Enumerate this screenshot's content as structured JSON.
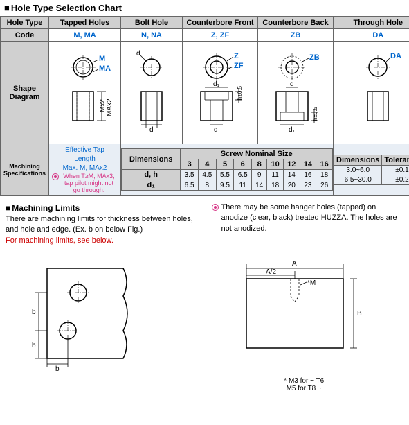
{
  "chart_title": "Hole Type Selection Chart",
  "header": {
    "hole_type": "Hole Type",
    "code": "Code",
    "shape": "Shape\nDiagram",
    "spec": "Machining\nSpecifications"
  },
  "cols": {
    "tapped": {
      "name": "Tapped Holes",
      "code": "M, MA"
    },
    "bolt": {
      "name": "Bolt Hole",
      "code": "N, NA"
    },
    "cb_front": {
      "name": "Counterbore Front",
      "code": "Z, ZF"
    },
    "cb_back": {
      "name": "Counterbore Back",
      "code": "ZB"
    },
    "through": {
      "name": "Through Hole",
      "code": "DA"
    }
  },
  "labels": {
    "M": "M",
    "MA": "MA",
    "d": "d",
    "Z": "Z",
    "ZF": "ZF",
    "ZB": "ZB",
    "DA": "DA",
    "d1": "d₁",
    "h": "h±0.5",
    "Mx2": "Mx2",
    "MAx2": "MAx2"
  },
  "eff_tap": {
    "l1": "Effective Tap",
    "l2": "Length",
    "l3": "Max. M, MAx2",
    "note": "When T≥M, MAx3, tap pilot might not go through."
  },
  "screw_table": {
    "title": "Screw Nominal Size",
    "dim_lbl": "Dimensions",
    "sizes": [
      "3",
      "4",
      "5",
      "6",
      "8",
      "10",
      "12",
      "14",
      "16"
    ],
    "rows": [
      {
        "lbl": "d, h",
        "vals": [
          "3.5",
          "4.5",
          "5.5",
          "6.5",
          "9",
          "11",
          "14",
          "16",
          "18"
        ]
      },
      {
        "lbl": "d₁",
        "vals": [
          "6.5",
          "8",
          "9.5",
          "11",
          "14",
          "18",
          "20",
          "23",
          "26"
        ]
      }
    ]
  },
  "tol_table": {
    "h1": "Dimensions",
    "h2": "Tolerance",
    "r1": [
      "3.0~6.0",
      "±0.1"
    ],
    "r2": [
      "6.5~30.0",
      "±0.2"
    ]
  },
  "limits": {
    "title": "Machining Limits",
    "p1": "There are machining limits for thickness between holes, and hole and edge. (Ex. b on below Fig.)",
    "p2": "For machining limits, see below.",
    "note": "There may be some hanger holes (tapped) on anodize (clear, black) treated HUZZA. The holes are not anodized."
  },
  "fig_labels": {
    "b": "b",
    "A": "A",
    "A2": "A/2",
    "M": "*M",
    "B": "B"
  },
  "footnote": {
    "l1": "* M3 for ~ T6",
    "l2": "M5 for T8 ~"
  }
}
